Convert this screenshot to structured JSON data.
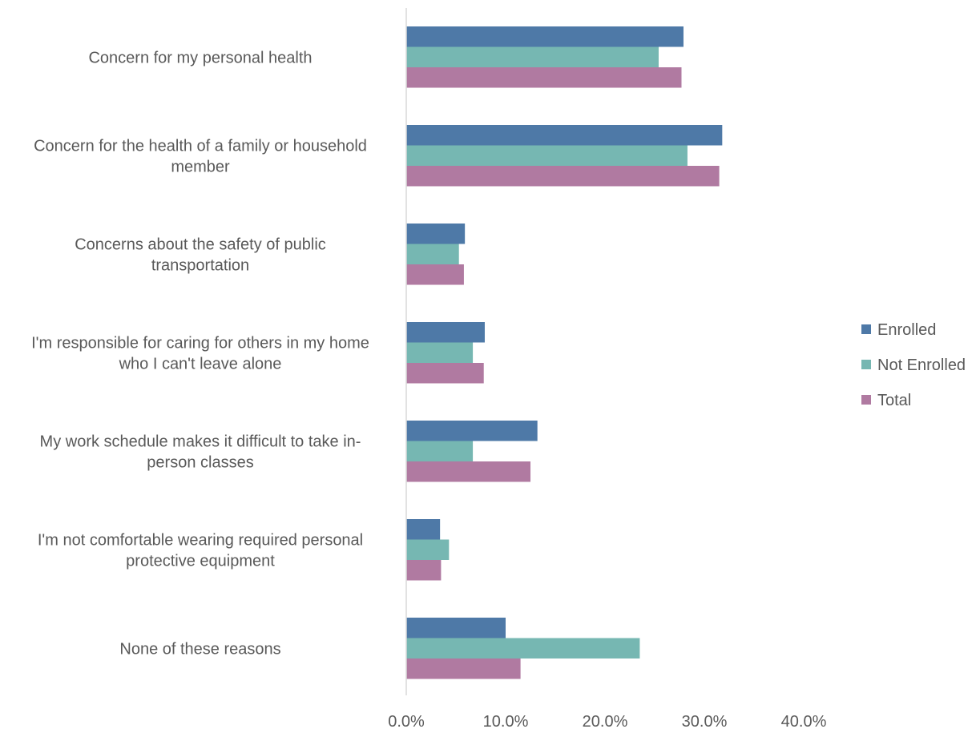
{
  "chart_data": {
    "type": "bar",
    "orientation": "horizontal",
    "title": "",
    "xlabel": "",
    "ylabel": "",
    "xlim": [
      0,
      40
    ],
    "ticks": [
      0,
      10,
      20,
      30,
      40
    ],
    "tick_labels": [
      "0.0%",
      "10.0%",
      "20.0%",
      "30.0%",
      "40.0%"
    ],
    "grid": false,
    "legend_position": "right",
    "categories": [
      [
        "Concern for my personal health"
      ],
      [
        "Concern for the health of a family or household",
        "member"
      ],
      [
        "Concerns about the safety of public",
        "transportation"
      ],
      [
        "I'm responsible for caring for others in my home",
        "who I can't leave alone"
      ],
      [
        "My work schedule makes it difficult to take in-",
        "person classes"
      ],
      [
        "I'm not comfortable wearing required personal",
        "protective equipment"
      ],
      [
        "None of these reasons"
      ]
    ],
    "series": [
      {
        "name": "Enrolled",
        "color": "#4e79a7",
        "values": [
          27.9,
          31.8,
          5.9,
          7.9,
          13.2,
          3.4,
          10.0
        ]
      },
      {
        "name": "Not Enrolled",
        "color": "#76b7b2",
        "values": [
          25.4,
          28.3,
          5.3,
          6.7,
          6.7,
          4.3,
          23.5
        ]
      },
      {
        "name": "Total",
        "color": "#b07aa1",
        "values": [
          27.7,
          31.5,
          5.8,
          7.8,
          12.5,
          3.5,
          11.5
        ]
      }
    ]
  }
}
